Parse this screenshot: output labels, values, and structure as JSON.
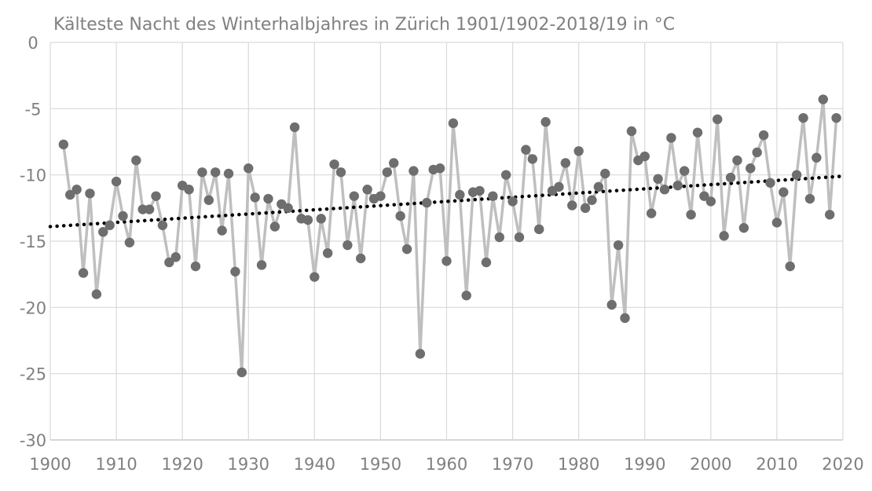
{
  "chart_data": {
    "type": "line",
    "title": "Kälteste Nacht des Winterhalbjahres in Zürich 1901/1902-2018/19 in °C",
    "xlabel": "",
    "ylabel": "",
    "xlim": [
      1900,
      2020
    ],
    "ylim": [
      -30,
      0
    ],
    "x_ticks": [
      "1900",
      "1910",
      "1920",
      "1930",
      "1940",
      "1950",
      "1960",
      "1970",
      "1980",
      "1990",
      "2000",
      "2010",
      "2020"
    ],
    "y_ticks": [
      "0",
      "-5",
      "-10",
      "-15",
      "-20",
      "-25",
      "-30"
    ],
    "grid": true,
    "legend": "none",
    "colors": {
      "series": "#bfbfbf",
      "points": "#6e6e6e",
      "trend": "#000000",
      "grid": "#d9d9d9",
      "text": "#808080"
    },
    "x": [
      1902,
      1903,
      1904,
      1905,
      1906,
      1907,
      1908,
      1909,
      1910,
      1911,
      1912,
      1913,
      1914,
      1915,
      1916,
      1917,
      1918,
      1919,
      1920,
      1921,
      1922,
      1923,
      1924,
      1925,
      1926,
      1927,
      1928,
      1929,
      1930,
      1931,
      1932,
      1933,
      1934,
      1935,
      1936,
      1937,
      1938,
      1939,
      1940,
      1941,
      1942,
      1943,
      1944,
      1945,
      1946,
      1947,
      1948,
      1949,
      1950,
      1951,
      1952,
      1953,
      1954,
      1955,
      1956,
      1957,
      1958,
      1959,
      1960,
      1961,
      1962,
      1963,
      1964,
      1965,
      1966,
      1967,
      1968,
      1969,
      1970,
      1971,
      1972,
      1973,
      1974,
      1975,
      1976,
      1977,
      1978,
      1979,
      1980,
      1981,
      1982,
      1983,
      1984,
      1985,
      1986,
      1987,
      1988,
      1989,
      1990,
      1991,
      1992,
      1993,
      1994,
      1995,
      1996,
      1997,
      1998,
      1999,
      2000,
      2001,
      2002,
      2003,
      2004,
      2005,
      2006,
      2007,
      2008,
      2009,
      2010,
      2011,
      2012,
      2013,
      2014,
      2015,
      2016,
      2017,
      2018,
      2019
    ],
    "series": [
      {
        "values": [
          -7.7,
          -11.5,
          -11.1,
          -17.4,
          -11.4,
          -19,
          -14.3,
          -13.8,
          -10.5,
          -13.1,
          -15.1,
          -8.9,
          -12.6,
          -12.6,
          -11.6,
          -13.8,
          -16.6,
          -16.2,
          -10.8,
          -11.1,
          -16.9,
          -9.8,
          -11.9,
          -9.8,
          -14.2,
          -9.9,
          -17.3,
          -24.9,
          -9.5,
          -11.7,
          -16.8,
          -11.8,
          -13.9,
          -12.2,
          -12.5,
          -6.4,
          -13.3,
          -13.4,
          -17.7,
          -13.3,
          -15.9,
          -9.2,
          -9.8,
          -15.3,
          -11.6,
          -16.3,
          -11.1,
          -11.8,
          -11.6,
          -9.8,
          -9.1,
          -13.1,
          -15.6,
          -9.7,
          -23.5,
          -12.1,
          -9.6,
          -9.5,
          -16.5,
          -6.1,
          -11.5,
          -19.1,
          -11.3,
          -11.2,
          -16.6,
          -11.6,
          -14.7,
          -10,
          -12,
          -14.7,
          -8.1,
          -8.8,
          -14.1,
          -6,
          -11.2,
          -10.9,
          -9.1,
          -12.3,
          -8.2,
          -12.5,
          -11.9,
          -10.9,
          -9.9,
          -19.8,
          -15.3,
          -20.8,
          -6.7,
          -8.9,
          -8.6,
          -12.9,
          -10.3,
          -11.1,
          -7.2,
          -10.8,
          -9.7,
          -13,
          -6.8,
          -11.6,
          -12,
          -5.8,
          -14.6,
          -10.2,
          -8.9,
          -14,
          -9.5,
          -8.3,
          -7,
          -10.6,
          -13.6,
          -11.3,
          -16.9,
          -10,
          -5.7,
          -11.8,
          -8.7,
          -4.3,
          -13,
          -5.7
        ]
      }
    ],
    "trendline": {
      "type": "linear",
      "x": [
        1900,
        2020
      ],
      "y": [
        -13.9,
        -10.1
      ]
    }
  }
}
